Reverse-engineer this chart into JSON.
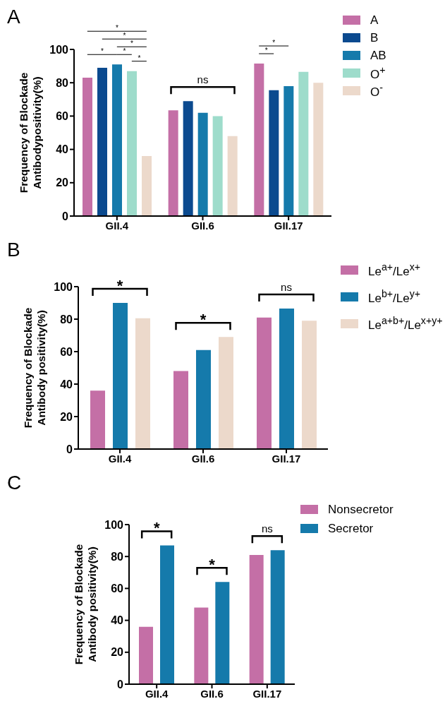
{
  "chart_data": [
    {
      "type": "bar",
      "title": "A",
      "categories": [
        "GII.4",
        "GII.6",
        "GII.17"
      ],
      "ylabel": "Frequency of Blockade\nAntibodypositivity(%)",
      "ylim": [
        0,
        100
      ],
      "yticks": [
        0,
        20,
        40,
        60,
        80,
        100
      ],
      "legend": "right",
      "series": [
        {
          "name": "A",
          "color": "#c46fa6",
          "values": [
            83,
            63.5,
            91.5
          ]
        },
        {
          "name": "B",
          "color": "#0b4a8f",
          "values": [
            89,
            69,
            75.5
          ]
        },
        {
          "name": "AB",
          "color": "#157aab",
          "values": [
            91,
            62,
            78
          ]
        },
        {
          "name": "O$^{+}$",
          "color": "#9edccb",
          "values": [
            87,
            60,
            86.5
          ]
        },
        {
          "name": "O$^{-}$",
          "color": "#ecd9cb",
          "values": [
            36,
            48,
            80
          ]
        }
      ],
      "annotations": [
        "*",
        "*",
        "*",
        "*",
        "*",
        "*",
        "ns",
        "*",
        "*"
      ]
    },
    {
      "type": "bar",
      "title": "B",
      "categories": [
        "GII.4",
        "GII.6",
        "GII.17"
      ],
      "ylabel": "Frequency of Blockade\nAntibody positivity(%)",
      "ylim": [
        0,
        100
      ],
      "yticks": [
        0,
        20,
        40,
        60,
        80,
        100
      ],
      "legend": "right",
      "series": [
        {
          "name": "Le$^{a+}$/Le$^{x+}$",
          "color": "#c46fa6",
          "values": [
            36,
            48,
            81
          ]
        },
        {
          "name": "Le$^{b+}$/Le$^{y+}$",
          "color": "#157aab",
          "values": [
            90,
            61,
            86.5
          ]
        },
        {
          "name": "Le$^{a+b+}$/Le$^{x+y+}$",
          "color": "#ecd9cb",
          "values": [
            80.5,
            69,
            79
          ]
        }
      ],
      "annotations": [
        "*",
        "*",
        "ns"
      ]
    },
    {
      "type": "bar",
      "title": "C",
      "categories": [
        "GII.4",
        "GII.6",
        "GII.17"
      ],
      "ylabel": "Frequency of Blockade\nAntibody positivity(%)",
      "ylim": [
        0,
        100
      ],
      "yticks": [
        0,
        20,
        40,
        60,
        80,
        100
      ],
      "legend": "right",
      "series": [
        {
          "name": "Nonsecretor",
          "color": "#c46fa6",
          "values": [
            36,
            48,
            81
          ]
        },
        {
          "name": "Secretor",
          "color": "#157aab",
          "values": [
            87,
            64,
            84
          ]
        }
      ],
      "annotations": [
        "*",
        "*",
        "ns"
      ]
    }
  ]
}
